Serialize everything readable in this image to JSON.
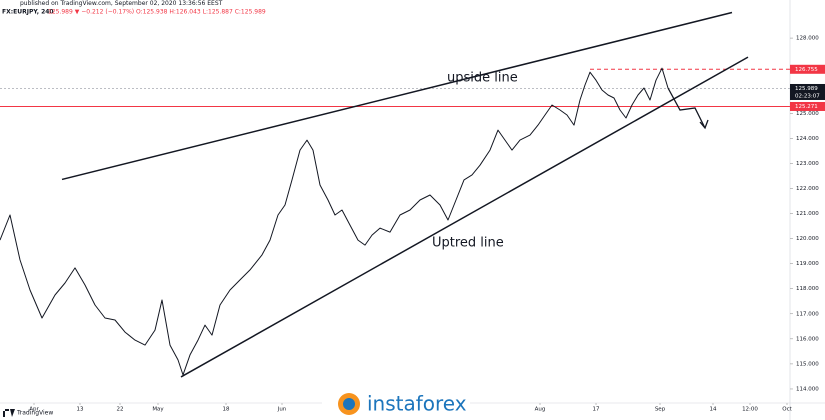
{
  "header": {
    "published": "published on TradingView.com, September 02, 2020 13:36:56 EEST",
    "symbol": "FX:EURJPY, 240",
    "ohlc": "125.989 ▼ −0.212 (−0.17%) O:125.938 H:126.043 L:125.887 C:125.989"
  },
  "chart_data": {
    "type": "line",
    "x": [
      0,
      10,
      20,
      30,
      42,
      55,
      65,
      75,
      85,
      95,
      105,
      115,
      125,
      135,
      145,
      155,
      162,
      170,
      178,
      183,
      190,
      198,
      205,
      212,
      220,
      230,
      240,
      250,
      262,
      270,
      278,
      285,
      292,
      300,
      307,
      313,
      320,
      328,
      335,
      342,
      350,
      358,
      365,
      372,
      380,
      390,
      400,
      410,
      420,
      430,
      440,
      448,
      456,
      464,
      472,
      480,
      490,
      498,
      505,
      512,
      520,
      530,
      538,
      545,
      552,
      560,
      567,
      574,
      580,
      585,
      590,
      596,
      602,
      608,
      614,
      620,
      626,
      632,
      638,
      644,
      650,
      656,
      662,
      668
    ],
    "series": [
      {
        "name": "FX:EURJPY",
        "color": "#131722",
        "values": [
          119.94,
          120.94,
          119.15,
          117.95,
          116.83,
          117.75,
          118.23,
          118.83,
          118.15,
          117.35,
          116.83,
          116.75,
          116.27,
          115.95,
          115.75,
          116.35,
          117.55,
          115.75,
          115.16,
          114.56,
          115.36,
          115.95,
          116.55,
          116.15,
          117.35,
          117.95,
          118.35,
          118.75,
          119.35,
          119.94,
          120.94,
          121.34,
          122.34,
          123.53,
          123.93,
          123.53,
          122.14,
          121.54,
          120.94,
          121.14,
          120.54,
          119.94,
          119.74,
          120.14,
          120.42,
          120.26,
          120.94,
          121.14,
          121.54,
          121.74,
          121.34,
          120.74,
          121.54,
          122.34,
          122.54,
          122.93,
          123.53,
          124.33,
          123.93,
          123.53,
          123.93,
          124.13,
          124.53,
          124.93,
          125.33,
          125.13,
          124.93,
          124.53,
          125.53,
          126.13,
          126.64,
          126.32,
          125.93,
          125.73,
          125.61,
          125.13,
          124.81,
          125.33,
          125.73,
          126.01,
          125.53,
          126.32,
          126.8,
          126.01
        ]
      }
    ],
    "xlim": [
      0,
      790
    ],
    "xticks": [
      {
        "value": 34,
        "label": "Apr"
      },
      {
        "value": 80,
        "label": "13"
      },
      {
        "value": 120,
        "label": "22"
      },
      {
        "value": 158,
        "label": "May"
      },
      {
        "value": 226,
        "label": "18"
      },
      {
        "value": 282,
        "label": "Jun"
      },
      {
        "value": 540,
        "label": "Aug"
      },
      {
        "value": 596,
        "label": "17"
      },
      {
        "value": 660,
        "label": "Sep"
      },
      {
        "value": 713,
        "label": "14"
      },
      {
        "value": 750,
        "label": "12:00"
      },
      {
        "value": 787,
        "label": "Oct"
      }
    ],
    "ylim": [
      113.56,
      129.32
    ],
    "yticks": [
      {
        "value": 114,
        "label": "114.000"
      },
      {
        "value": 115,
        "label": "115.000"
      },
      {
        "value": 116,
        "label": "116.000"
      },
      {
        "value": 117,
        "label": "117.000"
      },
      {
        "value": 118,
        "label": "118.000"
      },
      {
        "value": 119,
        "label": "119.000"
      },
      {
        "value": 120,
        "label": "120.000"
      },
      {
        "value": 121,
        "label": "121.000"
      },
      {
        "value": 122,
        "label": "122.000"
      },
      {
        "value": 123,
        "label": "123.000"
      },
      {
        "value": 124,
        "label": "124.000"
      },
      {
        "value": 125,
        "label": "125.000"
      },
      {
        "value": 128,
        "label": "128.000"
      }
    ],
    "price_labels": [
      {
        "value": 126.755,
        "label": "126.755",
        "color": "#f23645",
        "line": "dashed"
      },
      {
        "value": 125.989,
        "label": "125.989",
        "color": "#131722",
        "line": "dotted"
      },
      {
        "value": 125.271,
        "label": "125.271",
        "color": "#f23645",
        "line": "solid"
      }
    ],
    "countdown": "02:23:07",
    "trend_lines": [
      {
        "label": "upside line",
        "x": [
          62,
          732
        ],
        "y": [
          122.36,
          129.02
        ]
      },
      {
        "label": "Uptred line",
        "x": [
          181,
          748
        ],
        "y": [
          114.48,
          127.24
        ]
      }
    ],
    "annotations": [
      {
        "text": "upside line",
        "x": 447,
        "y": 126.4
      },
      {
        "text": "Uptred line",
        "x": 432,
        "y": 119.82
      }
    ]
  },
  "footer": {
    "brand": "TradingView",
    "watermark": "instaforex"
  }
}
